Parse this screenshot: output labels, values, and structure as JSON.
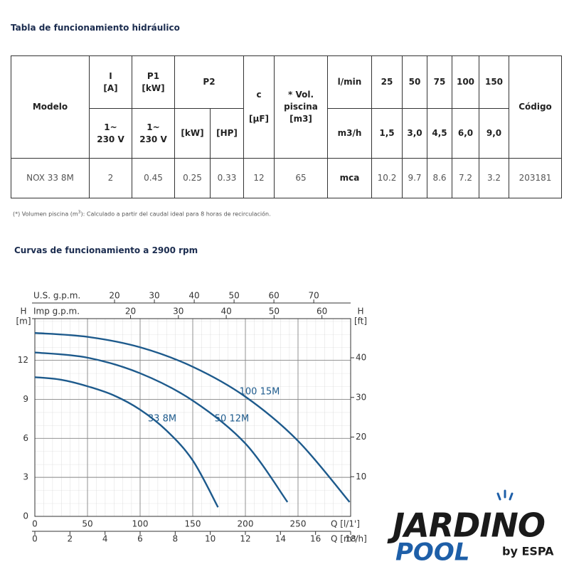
{
  "header": {
    "title": "Tabla de funcionamiento hidráulico"
  },
  "table": {
    "head": [
      [
        "Modelo",
        "I\n[A]",
        "P1\n[kW]",
        "P2",
        "c\n\n[µF]",
        "* Vol.\npiscina\n[m3]",
        "l/min",
        "25",
        "50",
        "75",
        "100",
        "150",
        "Código"
      ],
      [
        "1~\n230 V",
        "1~\n230 V",
        "[kW]",
        "[HP]",
        "m3/h",
        "1,5",
        "3,0",
        "4,5",
        "6,0",
        "9,0"
      ]
    ],
    "rows": [
      [
        "NOX 33 8M",
        "2",
        "0.45",
        "0.25",
        "0.33",
        "12",
        "65",
        "mca",
        "10.2",
        "9.7",
        "8.6",
        "7.2",
        "3.2",
        "203181"
      ]
    ]
  },
  "footnote": [
    "(*) Volumen piscina (m",
    "3",
    "): Calculado a partir del caudal ideal para 8 horas de recirculación."
  ],
  "chart_data": {
    "type": "line",
    "title": "Curvas de funcionamiento a 2900 rpm",
    "y_label": "H",
    "y_unit": "[m]",
    "y2_label": "H",
    "y2_unit": "[ft]",
    "x_label": "Q [l/1']",
    "xlim": [
      0,
      300
    ],
    "xticks": [
      0,
      50,
      100,
      150,
      200,
      250
    ],
    "ylim": [
      0,
      15.2
    ],
    "yticks": [
      0,
      3,
      6,
      9,
      12
    ],
    "y2lim": [
      0,
      49.87
    ],
    "y2ticks": [
      10,
      20,
      30,
      40
    ],
    "extra_x_axes": [
      {
        "label": "U.S. g.p.m.",
        "lim": [
          0,
          79.26
        ],
        "ticks": [
          20,
          30,
          40,
          50,
          60,
          70
        ]
      },
      {
        "label": "Imp g.p.m.",
        "lim": [
          0,
          66
        ],
        "ticks": [
          20,
          30,
          40,
          50,
          60
        ]
      },
      {
        "label": "Q [m³/h]",
        "lim": [
          0,
          18
        ],
        "ticks": [
          0,
          2,
          4,
          6,
          8,
          10,
          12,
          14,
          16,
          18
        ]
      }
    ],
    "grid": true,
    "series": [
      {
        "name": "33 8M",
        "color": "#1d5a8c",
        "x": [
          0,
          25,
          50,
          75,
          100,
          125,
          150,
          174
        ],
        "values": [
          10.7,
          10.5,
          10.0,
          9.3,
          8.2,
          6.6,
          4.3,
          0.7
        ]
      },
      {
        "name": "50 12M",
        "color": "#1d5a8c",
        "x": [
          0,
          50,
          100,
          150,
          200,
          240
        ],
        "values": [
          12.6,
          12.2,
          11.0,
          8.9,
          5.6,
          1.1
        ]
      },
      {
        "name": "100 15M",
        "color": "#1d5a8c",
        "x": [
          0,
          50,
          100,
          150,
          200,
          250,
          299
        ],
        "values": [
          14.1,
          13.8,
          13.0,
          11.5,
          9.2,
          5.8,
          1.1
        ]
      }
    ]
  },
  "logo": {
    "brand": "JARDINO",
    "line": "POOL",
    "by": "by ESPA"
  }
}
